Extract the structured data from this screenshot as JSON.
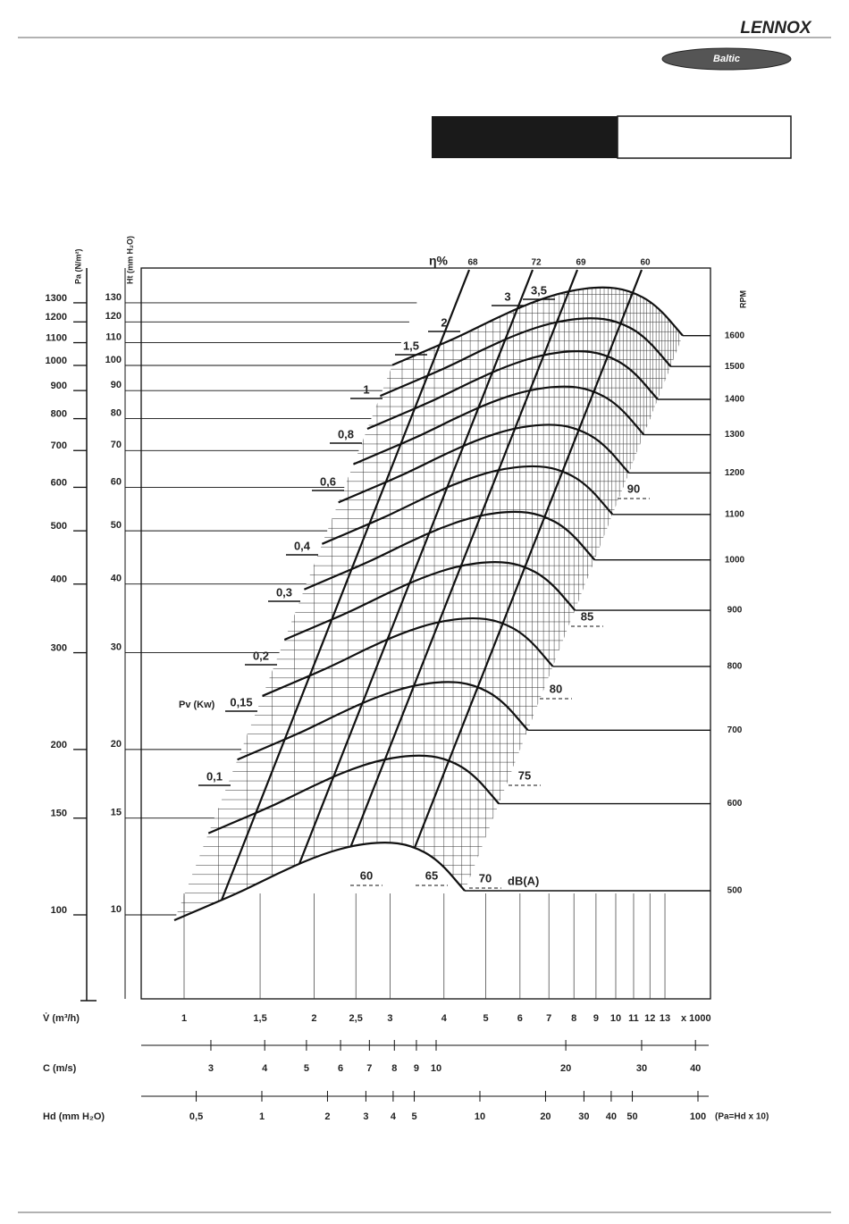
{
  "header": {
    "brand": "LENNOX",
    "series": "Baltic"
  },
  "chart_data": {
    "type": "fan-curve",
    "pa_label": "Pa (N/m²)",
    "pa_ticks": [
      100,
      150,
      200,
      300,
      400,
      500,
      600,
      700,
      800,
      900,
      1000,
      1100,
      1200,
      1300
    ],
    "ht_label": "Ht (mm H₂O)",
    "ht_ticks": [
      10,
      15,
      20,
      30,
      40,
      50,
      60,
      70,
      80,
      90,
      100,
      110,
      120,
      130
    ],
    "rpm_label": "RPM",
    "rpm": [
      1600,
      1500,
      1400,
      1300,
      1200,
      1100,
      1000,
      900,
      800,
      700,
      600,
      500
    ],
    "x_label": "V̇ (m³/h)",
    "x_unit": "x 1000",
    "xticks": [
      1,
      {
        "value": 1.5,
        "label": "1,5"
      },
      2,
      {
        "value": 2.5,
        "label": "2,5"
      },
      3,
      4,
      5,
      6,
      7,
      8,
      9,
      10,
      11,
      12,
      13
    ],
    "c_label": "C (m/s)",
    "c_ticks": [
      3,
      4,
      5,
      6,
      7,
      8,
      9,
      10,
      20,
      30,
      40
    ],
    "hd_label": "Hd (mm H₂O)",
    "hd_ticks": [
      {
        "value": 0.5,
        "label": "0,5"
      },
      1,
      2,
      3,
      4,
      5,
      10,
      20,
      30,
      40,
      50,
      100
    ],
    "hd_note": "(Pa=Hd x 10)",
    "power_label": "Pv (Kw)",
    "power": [
      "0,1",
      "0,15",
      "0,2",
      "0,3",
      "0,4",
      "0,6",
      "0,8",
      "1",
      "1,5",
      "2",
      "3",
      "3,5"
    ],
    "efficiency_label": "η%",
    "efficiency": [
      68,
      72,
      69,
      60
    ],
    "noise_label": "dB(A)",
    "noise": [
      60,
      65,
      70,
      75,
      80,
      85,
      90
    ]
  }
}
